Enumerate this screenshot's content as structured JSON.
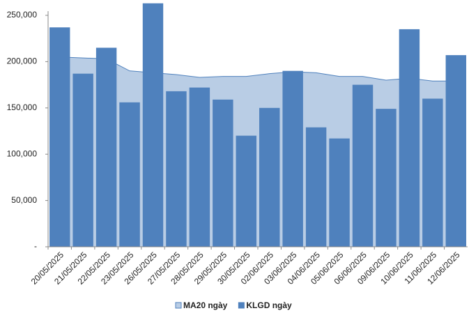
{
  "chart_data": {
    "type": "bar",
    "categories": [
      "20/05/2025",
      "21/05/2025",
      "22/05/2025",
      "23/05/2025",
      "26/05/2025",
      "27/05/2025",
      "28/05/2025",
      "29/05/2025",
      "30/05/2025",
      "02/06/2025",
      "03/06/2025",
      "04/06/2025",
      "05/06/2025",
      "06/06/2025",
      "09/06/2025",
      "10/06/2025",
      "11/06/2025",
      "12/06/2025"
    ],
    "series": [
      {
        "name": "MA20 ngày",
        "type": "area",
        "color": "#b9cde5",
        "line_color": "#4f81bd",
        "values": [
          205000,
          204000,
          203000,
          190000,
          188000,
          186000,
          183000,
          184000,
          184000,
          187000,
          189000,
          188000,
          184000,
          184000,
          180000,
          182000,
          179000,
          179000
        ]
      },
      {
        "name": "KLGD ngày",
        "type": "bar",
        "color": "#4f81bd",
        "values": [
          237000,
          187000,
          215000,
          156000,
          263000,
          168000,
          172000,
          159000,
          120000,
          150000,
          190000,
          129000,
          117000,
          175000,
          149000,
          235000,
          160000,
          207000
        ]
      }
    ],
    "ylim": [
      0,
      250000
    ],
    "yticks": [
      {
        "value": 0,
        "label": "-"
      },
      {
        "value": 50000,
        "label": "50,000"
      },
      {
        "value": 100000,
        "label": "100,000"
      },
      {
        "value": 150000,
        "label": "150,000"
      },
      {
        "value": 200000,
        "label": "200,000"
      },
      {
        "value": 250000,
        "label": "250,000"
      }
    ],
    "legend": "bottom"
  }
}
